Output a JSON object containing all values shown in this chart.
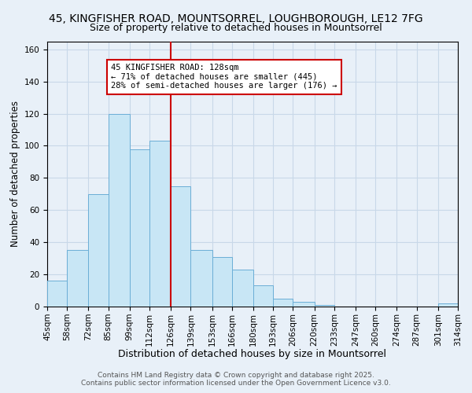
{
  "title": "45, KINGFISHER ROAD, MOUNTSORREL, LOUGHBOROUGH, LE12 7FG",
  "subtitle": "Size of property relative to detached houses in Mountsorrel",
  "xlabel": "Distribution of detached houses by size in Mountsorrel",
  "ylabel": "Number of detached properties",
  "bar_edges": [
    45,
    58,
    72,
    85,
    99,
    112,
    126,
    139,
    153,
    166,
    180,
    193,
    206,
    220,
    233,
    247,
    260,
    274,
    287,
    301,
    314
  ],
  "bar_heights": [
    16,
    35,
    70,
    120,
    98,
    103,
    75,
    35,
    31,
    23,
    13,
    5,
    3,
    1,
    0,
    0,
    0,
    0,
    0,
    2
  ],
  "bar_color": "#c8e6f5",
  "bar_edge_color": "#6baed6",
  "vline_x": 126,
  "vline_color": "#cc0000",
  "annotation_text": "45 KINGFISHER ROAD: 128sqm\n← 71% of detached houses are smaller (445)\n28% of semi-detached houses are larger (176) →",
  "annotation_box_color": "#ffffff",
  "annotation_box_edge_color": "#cc0000",
  "ylim": [
    0,
    165
  ],
  "yticks": [
    0,
    20,
    40,
    60,
    80,
    100,
    120,
    140,
    160
  ],
  "grid_color": "#c8d8e8",
  "bg_color": "#e8f0f8",
  "footer_line1": "Contains HM Land Registry data © Crown copyright and database right 2025.",
  "footer_line2": "Contains public sector information licensed under the Open Government Licence v3.0.",
  "title_fontsize": 10,
  "subtitle_fontsize": 9,
  "xlabel_fontsize": 9,
  "ylabel_fontsize": 8.5,
  "tick_fontsize": 7.5,
  "annotation_fontsize": 7.5,
  "footer_fontsize": 6.5
}
